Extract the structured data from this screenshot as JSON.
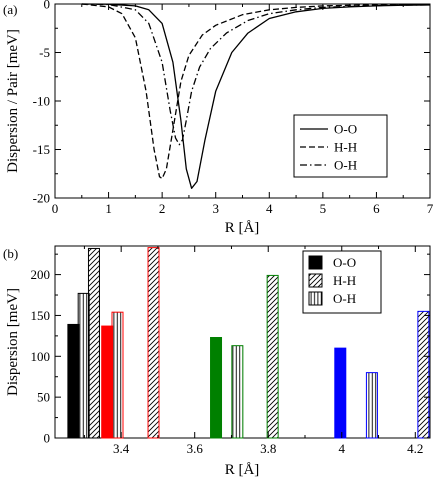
{
  "chart_data": [
    {
      "type": "line",
      "panel_label": "(a)",
      "xlabel": "R [Å]",
      "ylabel": "Dispersion / Pair [meV]",
      "xlim": [
        0,
        7
      ],
      "ylim": [
        -20,
        0
      ],
      "xticks": [
        0,
        1,
        2,
        3,
        4,
        5,
        6,
        7
      ],
      "yticks": [
        0,
        -5,
        -10,
        -15,
        -20
      ],
      "legend_position": "lower-right",
      "series": [
        {
          "name": "O-O",
          "dash": "solid",
          "x": [
            0.5,
            1.0,
            1.5,
            1.75,
            2.0,
            2.2,
            2.35,
            2.45,
            2.55,
            2.65,
            2.8,
            3.0,
            3.3,
            3.6,
            4.0,
            4.5,
            5.0,
            5.5,
            6.0,
            6.5,
            7.0
          ],
          "y": [
            0.0,
            -0.02,
            -0.2,
            -0.6,
            -2.0,
            -6.0,
            -12.0,
            -17.0,
            -19.0,
            -18.3,
            -14.0,
            -9.0,
            -5.0,
            -3.0,
            -1.5,
            -0.8,
            -0.45,
            -0.3,
            -0.2,
            -0.12,
            -0.1
          ]
        },
        {
          "name": "H-H",
          "dash": "dashed",
          "x": [
            0.5,
            1.0,
            1.25,
            1.5,
            1.7,
            1.85,
            1.95,
            2.0,
            2.08,
            2.2,
            2.35,
            2.5,
            2.75,
            3.0,
            3.5,
            4.0,
            4.5,
            5.0,
            6.0,
            7.0
          ],
          "y": [
            0.0,
            -0.3,
            -1.0,
            -3.5,
            -9.0,
            -15.0,
            -17.8,
            -18.0,
            -17.0,
            -13.0,
            -8.0,
            -5.3,
            -3.2,
            -2.2,
            -1.1,
            -0.6,
            -0.35,
            -0.2,
            -0.08,
            -0.05
          ]
        },
        {
          "name": "O-H",
          "dash": "dashdot",
          "x": [
            0.5,
            1.0,
            1.5,
            1.75,
            2.0,
            2.15,
            2.25,
            2.32,
            2.38,
            2.45,
            2.55,
            2.7,
            2.9,
            3.2,
            3.6,
            4.0,
            4.5,
            5.0,
            6.0,
            7.0
          ],
          "y": [
            0.0,
            -0.05,
            -0.6,
            -2.0,
            -6.0,
            -11.0,
            -13.8,
            -14.5,
            -14.0,
            -12.0,
            -9.0,
            -6.5,
            -4.6,
            -3.0,
            -1.7,
            -1.0,
            -0.6,
            -0.35,
            -0.15,
            -0.08
          ]
        }
      ]
    },
    {
      "type": "bar",
      "panel_label": "(b)",
      "xlabel": "R [Å]",
      "ylabel": "Dispersion [meV]",
      "xlim": [
        3.22,
        4.24
      ],
      "ylim": [
        0,
        235
      ],
      "xticks": [
        3.4,
        3.6,
        3.8,
        4.0,
        4.2
      ],
      "xtick_labels": [
        "3.4",
        "3.6",
        "3.8",
        "4",
        "4.2"
      ],
      "yticks": [
        0,
        50,
        100,
        150,
        200
      ],
      "legend_position": "top-right",
      "legend": [
        {
          "name": "O-O",
          "pattern": "solid"
        },
        {
          "name": "H-H",
          "pattern": "diagonal"
        },
        {
          "name": "O-H",
          "pattern": "vertical"
        }
      ],
      "bars": [
        {
          "x": 3.27,
          "value": 139,
          "pair": "O-O",
          "color": "#000000"
        },
        {
          "x": 3.298,
          "value": 177,
          "pair": "O-H",
          "color": "#000000"
        },
        {
          "x": 3.326,
          "value": 232,
          "pair": "H-H",
          "color": "#000000"
        },
        {
          "x": 3.362,
          "value": 137,
          "pair": "O-O",
          "color": "#ff0000"
        },
        {
          "x": 3.39,
          "value": 154,
          "pair": "O-H",
          "color": "#ff0000"
        },
        {
          "x": 3.488,
          "value": 233,
          "pair": "H-H",
          "color": "#ff0000"
        },
        {
          "x": 3.658,
          "value": 123,
          "pair": "O-O",
          "color": "#008000"
        },
        {
          "x": 3.716,
          "value": 113,
          "pair": "O-H",
          "color": "#008000"
        },
        {
          "x": 3.812,
          "value": 199,
          "pair": "H-H",
          "color": "#008000"
        },
        {
          "x": 3.996,
          "value": 110,
          "pair": "O-O",
          "color": "#0000ff"
        },
        {
          "x": 4.082,
          "value": 80,
          "pair": "O-H",
          "color": "#0000ff"
        },
        {
          "x": 4.222,
          "value": 155,
          "pair": "H-H",
          "color": "#0000ff"
        }
      ]
    }
  ]
}
